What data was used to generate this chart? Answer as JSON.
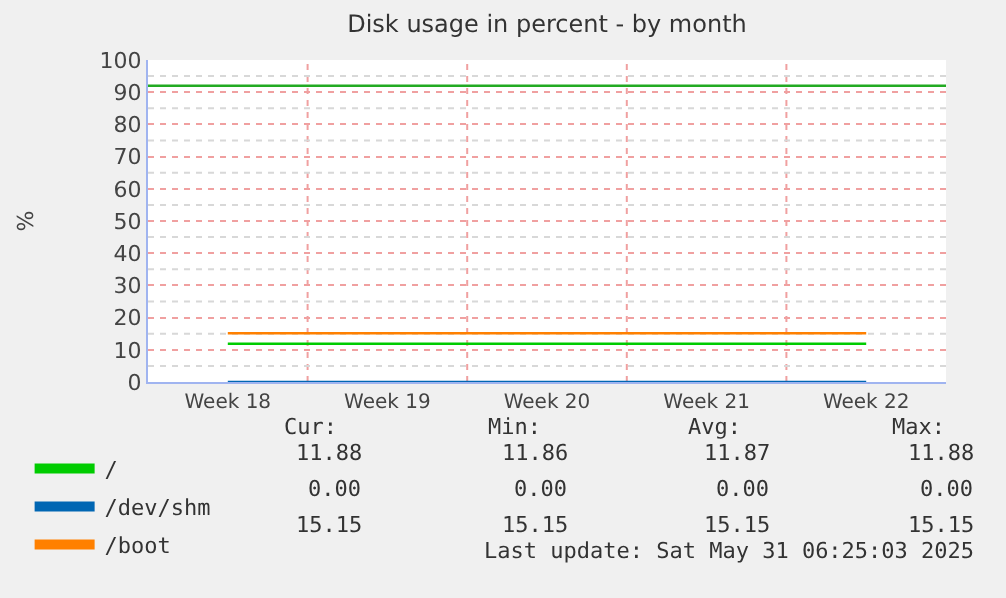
{
  "chart_data": {
    "type": "line",
    "title": "Disk usage in percent - by month",
    "ylabel": "%",
    "categories": [
      "Week 18",
      "Week 19",
      "Week 20",
      "Week 21",
      "Week 22"
    ],
    "ylim": [
      0,
      100
    ],
    "yticks": [
      0,
      10,
      20,
      30,
      40,
      50,
      60,
      70,
      80,
      90,
      100
    ],
    "grid": true,
    "legend": "bottom left",
    "marker": "none",
    "line_style": "solid",
    "series": [
      {
        "name": "/",
        "color": "#00cc00",
        "values": [
          11.88,
          11.88,
          11.88,
          11.88,
          11.88
        ]
      },
      {
        "name": "/dev/shm",
        "color": "#0066b3",
        "values": [
          0,
          0,
          0,
          0,
          0
        ]
      },
      {
        "name": "/boot",
        "color": "#ff8000",
        "values": [
          15.15,
          15.15,
          15.15,
          15.15,
          15.15
        ]
      }
    ],
    "ref_lines": [
      {
        "axis": "y",
        "value": 92,
        "color": "#22aa22"
      }
    ],
    "annotations": [
      "Cur:",
      "Min:",
      "Avg:",
      "Max:",
      "11.88",
      "11.86",
      "11.87",
      "11.88",
      "0.00",
      "0.00",
      "0.00",
      "0.00",
      "15.15",
      "15.15",
      "15.15",
      "15.15",
      "Last update: Sat May 31 06:25:03 2025"
    ]
  }
}
